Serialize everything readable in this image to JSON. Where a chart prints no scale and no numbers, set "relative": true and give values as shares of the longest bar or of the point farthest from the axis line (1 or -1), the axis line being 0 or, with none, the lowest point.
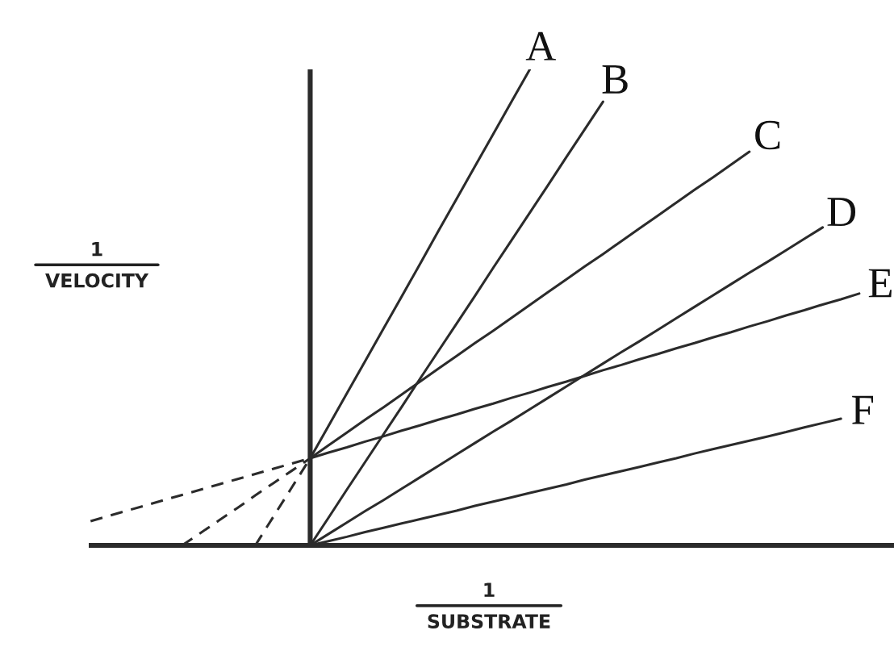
{
  "chart_data": {
    "type": "line",
    "relative": true,
    "line_style": "solid",
    "xlabel": "1\nSUBSTRATE",
    "ylabel": "1\nVELOCITY",
    "categories": [
      null,
      null,
      null,
      null,
      null,
      null,
      null,
      null,
      null,
      null,
      null,
      null,
      null,
      null,
      null,
      null,
      null,
      null,
      null,
      null,
      null,
      null,
      null,
      null,
      null,
      null,
      null,
      null,
      null,
      null,
      null,
      null,
      null,
      null,
      null,
      null,
      null,
      null,
      null,
      null,
      null,
      null,
      null
    ],
    "series": [
      {
        "name": "A",
        "color": "#2b2b2b",
        "values": [
          null,
          null,
          null,
          null,
          null,
          null,
          null,
          null,
          null,
          null,
          null,
          null,
          0.183,
          0.251,
          0.319,
          0.387,
          0.455,
          0.523,
          0.591,
          0.66,
          0.728,
          0.796,
          0.864,
          0.932,
          1.0,
          null,
          null,
          null,
          null,
          null,
          null,
          null,
          null,
          null,
          null,
          null,
          null,
          null,
          null,
          null,
          null,
          null,
          null
        ]
      },
      {
        "name": "B",
        "color": "#2b2b2b",
        "values": [
          null,
          null,
          null,
          null,
          null,
          null,
          null,
          null,
          null,
          null,
          null,
          null,
          0,
          0.058,
          0.117,
          0.175,
          0.233,
          0.291,
          0.35,
          0.408,
          0.466,
          0.524,
          0.583,
          0.641,
          0.699,
          0.757,
          0.816,
          0.874,
          0.932,
          null,
          null,
          null,
          null,
          null,
          null,
          null,
          null,
          null,
          null,
          null,
          null,
          null,
          null
        ]
      },
      {
        "name": "C",
        "color": "#2b2b2b",
        "values": [
          null,
          null,
          null,
          null,
          null,
          null,
          null,
          null,
          null,
          null,
          null,
          null,
          0.183,
          0.21,
          0.237,
          0.264,
          0.29,
          0.317,
          0.344,
          0.371,
          0.398,
          0.425,
          0.451,
          0.478,
          0.505,
          0.532,
          0.559,
          0.586,
          0.612,
          0.639,
          0.666,
          0.693,
          0.72,
          0.747,
          0.773,
          0.8,
          0.827,
          null,
          null,
          null,
          null,
          null,
          null
        ]
      },
      {
        "name": "D",
        "color": "#2b2b2b",
        "values": [
          null,
          null,
          null,
          null,
          null,
          null,
          null,
          null,
          null,
          null,
          null,
          null,
          0,
          0.024,
          0.048,
          0.072,
          0.095,
          0.119,
          0.143,
          0.167,
          0.191,
          0.215,
          0.239,
          0.262,
          0.286,
          0.31,
          0.334,
          0.358,
          0.382,
          0.406,
          0.429,
          0.453,
          0.477,
          0.501,
          0.525,
          0.549,
          0.573,
          0.596,
          0.62,
          0.644,
          0.668,
          null,
          null
        ]
      },
      {
        "name": "E",
        "color": "#2b2b2b",
        "values": [
          null,
          null,
          null,
          null,
          null,
          null,
          null,
          null,
          null,
          null,
          null,
          null,
          0.183,
          0.195,
          0.206,
          0.218,
          0.229,
          0.241,
          0.252,
          0.264,
          0.275,
          0.287,
          0.298,
          0.31,
          0.321,
          0.333,
          0.344,
          0.356,
          0.368,
          0.379,
          0.391,
          0.402,
          0.414,
          0.425,
          0.437,
          0.448,
          0.46,
          0.471,
          0.483,
          0.494,
          0.506,
          0.517,
          0.529
        ]
      },
      {
        "name": "F",
        "color": "#2b2b2b",
        "values": [
          null,
          null,
          null,
          null,
          null,
          null,
          null,
          null,
          null,
          null,
          null,
          null,
          0,
          0.009,
          0.018,
          0.028,
          0.037,
          0.046,
          0.055,
          0.064,
          0.073,
          0.083,
          0.092,
          0.101,
          0.11,
          0.119,
          0.128,
          0.138,
          0.147,
          0.156,
          0.165,
          0.174,
          0.183,
          0.193,
          0.202,
          0.211,
          0.22,
          0.229,
          0.238,
          0.248,
          0.257,
          0.266,
          null
        ]
      },
      {
        "color": "#2b2b2b",
        "line_style": "dashed",
        "values": [
          null,
          null,
          null,
          null,
          null,
          null,
          null,
          null,
          null,
          0,
          0.061,
          0.122,
          0.183,
          null,
          null,
          null,
          null,
          null,
          null,
          null,
          null,
          null,
          null,
          null,
          null,
          null,
          null,
          null,
          null,
          null,
          null,
          null,
          null,
          null,
          null,
          null,
          null,
          null,
          null,
          null,
          null,
          null,
          null
        ]
      },
      {
        "color": "#2b2b2b",
        "line_style": "dashed",
        "values": [
          null,
          null,
          null,
          null,
          null,
          0,
          0.026,
          0.052,
          0.078,
          0.105,
          0.131,
          0.157,
          0.183,
          null,
          null,
          null,
          null,
          null,
          null,
          null,
          null,
          null,
          null,
          null,
          null,
          null,
          null,
          null,
          null,
          null,
          null,
          null,
          null,
          null,
          null,
          null,
          null,
          null,
          null,
          null,
          null,
          null,
          null
        ]
      },
      {
        "color": "#2b2b2b",
        "line_style": "dashed",
        "values": [
          0.051,
          0.062,
          0.073,
          0.084,
          0.095,
          0.106,
          0.117,
          0.128,
          0.139,
          0.15,
          0.161,
          0.172,
          0.183,
          null,
          null,
          null,
          null,
          null,
          null,
          null,
          null,
          null,
          null,
          null,
          null,
          null,
          null,
          null,
          null,
          null,
          null,
          null,
          null,
          null,
          null,
          null,
          null,
          null,
          null,
          null,
          null,
          null,
          null
        ]
      }
    ]
  }
}
